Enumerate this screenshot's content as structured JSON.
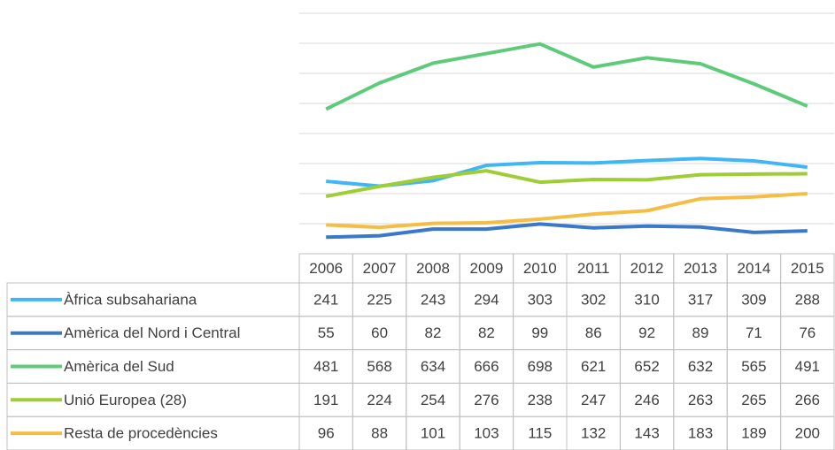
{
  "chart_data": {
    "type": "line",
    "categories": [
      "2006",
      "2007",
      "2008",
      "2009",
      "2010",
      "2011",
      "2012",
      "2013",
      "2014",
      "2015"
    ],
    "series": [
      {
        "name": "Àfrica subsahariana",
        "color": "#41b6f5",
        "values": [
          241,
          225,
          243,
          294,
          303,
          302,
          310,
          317,
          309,
          288
        ]
      },
      {
        "name": "Amèrica del Nord i Central",
        "color": "#3a78c9",
        "values": [
          55,
          60,
          82,
          82,
          99,
          86,
          92,
          89,
          71,
          76
        ]
      },
      {
        "name": "Amèrica del Sud",
        "color": "#5dcb7a",
        "values": [
          481,
          568,
          634,
          666,
          698,
          621,
          652,
          632,
          565,
          491
        ]
      },
      {
        "name": "Unió Europea (28)",
        "color": "#9fcd35",
        "values": [
          191,
          224,
          254,
          276,
          238,
          247,
          246,
          263,
          265,
          266
        ]
      },
      {
        "name": "Resta de procedències",
        "color": "#f6bd44",
        "values": [
          96,
          88,
          101,
          103,
          115,
          132,
          143,
          183,
          189,
          200
        ]
      }
    ],
    "ylim": [
      0,
      800
    ],
    "yticks": [
      0,
      100,
      200,
      300,
      400,
      500,
      600,
      700,
      800
    ],
    "grid": true
  }
}
